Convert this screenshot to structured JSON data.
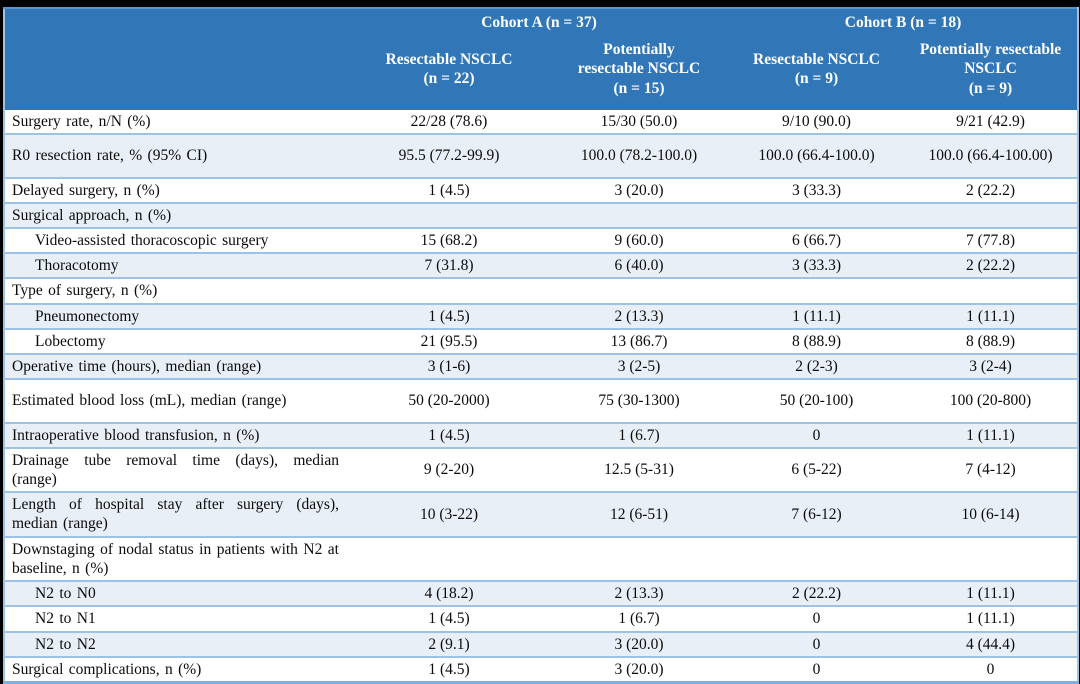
{
  "colors": {
    "header_blue": "#3176B6",
    "stripe_row": "#E9EFF7",
    "row_border": "#9CC3E5",
    "header_text": "#FFFFFF",
    "body_text": "#0B0B0B",
    "page_frame": "#000000"
  },
  "table": {
    "groups": [
      {
        "label": "Cohort A (n = 37)"
      },
      {
        "label": "Cohort B (n = 18)"
      }
    ],
    "columns": [
      {
        "label": "Resectable NSCLC\n(n = 22)"
      },
      {
        "label": "Potentially\nresectable NSCLC\n(n = 15)"
      },
      {
        "label": "Resectable NSCLC\n(n = 9)"
      },
      {
        "label": "Potentially resectable\nNSCLC\n(n = 9)"
      }
    ],
    "rows": [
      {
        "label": "Surgery rate, n/N (%)",
        "indent": false,
        "tall": false,
        "values": [
          "22/28 (78.6)",
          "15/30 (50.0)",
          "9/10 (90.0)",
          "9/21 (42.9)"
        ]
      },
      {
        "label": "R0 resection rate, % (95% CI)",
        "indent": false,
        "tall": true,
        "values": [
          "95.5 (77.2-99.9)",
          "100.0 (78.2-100.0)",
          "100.0 (66.4-100.0)",
          "100.0 (66.4-100.00)"
        ]
      },
      {
        "label": "Delayed surgery, n (%)",
        "indent": false,
        "tall": false,
        "values": [
          "1 (4.5)",
          "3 (20.0)",
          "3 (33.3)",
          "2 (22.2)"
        ]
      },
      {
        "label": "Surgical approach, n (%)",
        "indent": false,
        "tall": false,
        "values": [
          "",
          "",
          "",
          ""
        ]
      },
      {
        "label": "Video-assisted thoracoscopic surgery",
        "indent": true,
        "tall": false,
        "values": [
          "15 (68.2)",
          "9 (60.0)",
          "6 (66.7)",
          "7 (77.8)"
        ]
      },
      {
        "label": "Thoracotomy",
        "indent": true,
        "tall": false,
        "values": [
          "7 (31.8)",
          "6 (40.0)",
          "3 (33.3)",
          "2 (22.2)"
        ]
      },
      {
        "label": "Type of surgery, n (%)",
        "indent": false,
        "tall": false,
        "values": [
          "",
          "",
          "",
          ""
        ]
      },
      {
        "label": "Pneumonectomy",
        "indent": true,
        "tall": false,
        "values": [
          "1 (4.5)",
          "2 (13.3)",
          "1 (11.1)",
          "1 (11.1)"
        ]
      },
      {
        "label": "Lobectomy",
        "indent": true,
        "tall": false,
        "values": [
          "21 (95.5)",
          "13 (86.7)",
          "8 (88.9)",
          "8 (88.9)"
        ]
      },
      {
        "label": "Operative time (hours), median (range)",
        "indent": false,
        "tall": false,
        "values": [
          "3 (1-6)",
          "3 (2-5)",
          "2 (2-3)",
          "3 (2-4)"
        ]
      },
      {
        "label": "Estimated blood loss (mL), median (range)",
        "indent": false,
        "tall": true,
        "values": [
          "50 (20-2000)",
          "75 (30-1300)",
          "50 (20-100)",
          "100 (20-800)"
        ]
      },
      {
        "label": "Intraoperative blood transfusion, n (%)",
        "indent": false,
        "tall": false,
        "values": [
          "1 (4.5)",
          "1 (6.7)",
          "0",
          "1 (11.1)"
        ]
      },
      {
        "label": "Drainage tube removal time (days), median (range)",
        "indent": false,
        "tall": false,
        "values": [
          "9 (2-20)",
          "12.5 (5-31)",
          "6 (5-22)",
          "7 (4-12)"
        ]
      },
      {
        "label": "Length of hospital stay after surgery (days), median (range)",
        "indent": false,
        "tall": false,
        "values": [
          "10 (3-22)",
          "12 (6-51)",
          "7 (6-12)",
          "10 (6-14)"
        ]
      },
      {
        "label": "Downstaging of nodal status in patients with N2 at baseline, n (%)",
        "indent": false,
        "tall": false,
        "values": [
          "",
          "",
          "",
          ""
        ]
      },
      {
        "label": "N2 to N0",
        "indent": true,
        "tall": false,
        "values": [
          "4 (18.2)",
          "2 (13.3)",
          "2 (22.2)",
          "1 (11.1)"
        ]
      },
      {
        "label": "N2 to N1",
        "indent": true,
        "tall": false,
        "values": [
          "1 (4.5)",
          "1 (6.7)",
          "0",
          "1 (11.1)"
        ]
      },
      {
        "label": "N2 to N2",
        "indent": true,
        "tall": false,
        "values": [
          "2 (9.1)",
          "3 (20.0)",
          "0",
          "4 (44.4)"
        ]
      },
      {
        "label": "Surgical complications, n (%)",
        "indent": false,
        "tall": false,
        "values": [
          "1 (4.5)",
          "3 (20.0)",
          "0",
          "0"
        ]
      }
    ]
  }
}
